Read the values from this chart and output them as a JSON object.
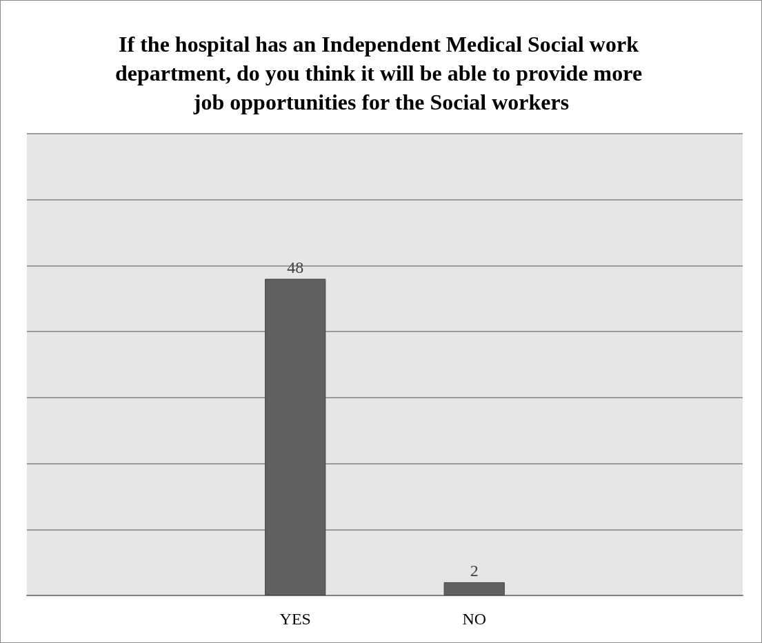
{
  "chart_data": {
    "type": "bar",
    "title": "If the hospital has an Independent Medical Social work department, do you think it will be able to provide more job opportunities for the Social workers",
    "categories": [
      null,
      "YES",
      "NO",
      null
    ],
    "values": [
      null,
      48,
      2,
      null
    ],
    "color": "#606060",
    "ylim": [
      0,
      70
    ],
    "yticks": [
      {
        "value": 0,
        "label": null
      },
      {
        "value": 10,
        "label": null
      },
      {
        "value": 20,
        "label": null
      },
      {
        "value": 30,
        "label": null
      },
      {
        "value": 40,
        "label": null
      },
      {
        "value": 50,
        "label": null
      },
      {
        "value": 60,
        "label": null
      },
      {
        "value": 70,
        "label": null
      }
    ],
    "grid": "y",
    "tick_labels": "x",
    "data_labels": true
  }
}
